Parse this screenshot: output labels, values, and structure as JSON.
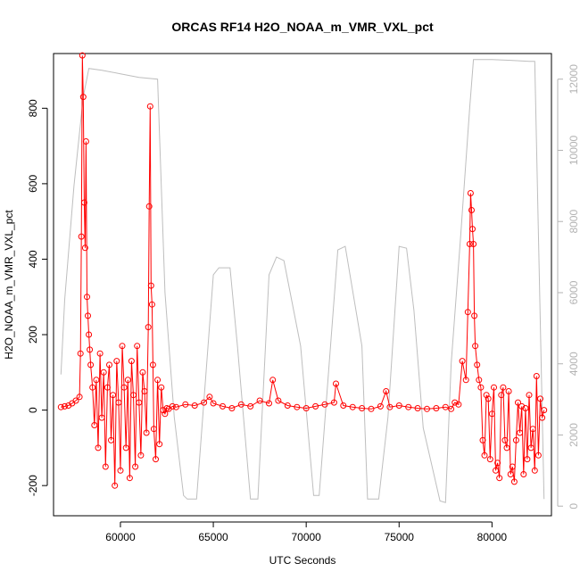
{
  "chart_data": {
    "type": "line",
    "title": "ORCAS RF14 H2O_NOAA_m_VMR_VXL_pct",
    "xlabel": "UTC Seconds",
    "ylabel": "H2O_NOAA_m_VMR_VXL_pct",
    "xlim": [
      56400,
      83200
    ],
    "ylim": [
      -280,
      945
    ],
    "xticks": [
      60000,
      65000,
      70000,
      75000,
      80000
    ],
    "yticks": [
      -200,
      0,
      200,
      400,
      600,
      800
    ],
    "y2lim": [
      -270,
      12720
    ],
    "y2ticks": [
      0,
      2000,
      4000,
      6000,
      8000,
      10000,
      12000
    ],
    "grid": false,
    "colors": {
      "primary": "#ff0000",
      "secondary": "#bebebe"
    },
    "series": [
      {
        "axis": "left",
        "style": "line+circles",
        "color": "#ff0000",
        "x": [
          56800,
          57000,
          57200,
          57400,
          57600,
          57800,
          57850,
          57900,
          57950,
          58000,
          58050,
          58100,
          58150,
          58200,
          58250,
          58300,
          58350,
          58400,
          58500,
          58600,
          58700,
          58800,
          58900,
          59000,
          59100,
          59200,
          59300,
          59400,
          59500,
          59600,
          59700,
          59800,
          59900,
          60000,
          60100,
          60200,
          60300,
          60400,
          60500,
          60600,
          60700,
          60800,
          60900,
          61000,
          61100,
          61200,
          61300,
          61400,
          61500,
          61550,
          61600,
          61650,
          61700,
          61750,
          61800,
          61900,
          62000,
          62100,
          62200,
          62300,
          62400,
          62500,
          62600,
          62800,
          63000,
          63500,
          64000,
          64500,
          64800,
          65000,
          65500,
          66000,
          66500,
          67000,
          67500,
          68000,
          68200,
          68500,
          69000,
          69500,
          70000,
          70500,
          71000,
          71500,
          71600,
          72000,
          72500,
          73000,
          73500,
          74000,
          74300,
          74500,
          75000,
          75500,
          76000,
          76500,
          77000,
          77500,
          77800,
          78000,
          78200,
          78400,
          78600,
          78700,
          78800,
          78850,
          78900,
          78950,
          79000,
          79050,
          79100,
          79200,
          79300,
          79400,
          79500,
          79600,
          79700,
          79800,
          79900,
          80000,
          80100,
          80200,
          80300,
          80400,
          80500,
          80600,
          80700,
          80800,
          80900,
          81000,
          81100,
          81200,
          81300,
          81400,
          81500,
          81600,
          81700,
          81800,
          81900,
          82000,
          82100,
          82200,
          82300,
          82400,
          82500,
          82600,
          82700,
          82800
        ],
        "y": [
          8,
          10,
          12,
          18,
          25,
          35,
          150,
          460,
          940,
          830,
          550,
          430,
          712,
          300,
          250,
          200,
          160,
          120,
          60,
          -40,
          80,
          -100,
          150,
          -20,
          100,
          -150,
          60,
          120,
          -80,
          40,
          -200,
          130,
          20,
          -160,
          170,
          60,
          -100,
          80,
          -180,
          130,
          40,
          -150,
          170,
          20,
          -120,
          100,
          50,
          -60,
          220,
          540,
          805,
          330,
          280,
          120,
          -50,
          -130,
          80,
          -90,
          60,
          0,
          -10,
          5,
          3,
          10,
          8,
          15,
          12,
          20,
          35,
          18,
          10,
          5,
          15,
          10,
          25,
          18,
          80,
          25,
          12,
          8,
          5,
          10,
          15,
          20,
          70,
          12,
          8,
          5,
          3,
          10,
          50,
          8,
          12,
          8,
          5,
          3,
          5,
          8,
          3,
          20,
          15,
          130,
          80,
          260,
          440,
          575,
          530,
          480,
          440,
          250,
          170,
          120,
          80,
          60,
          -80,
          -120,
          40,
          30,
          -130,
          -10,
          60,
          -160,
          -140,
          -180,
          40,
          60,
          -80,
          -100,
          50,
          -170,
          -150,
          -190,
          -80,
          20,
          -60,
          10,
          -170,
          5,
          -130,
          40,
          -100,
          -50,
          -160,
          90,
          -120,
          30,
          -20,
          0
        ]
      },
      {
        "axis": "right",
        "style": "line",
        "color": "#bebebe",
        "x": [
          56800,
          57000,
          57500,
          58000,
          58300,
          59000,
          60000,
          61000,
          62000,
          62400,
          62900,
          63400,
          63600,
          64100,
          65000,
          65300,
          65900,
          66300,
          67000,
          67400,
          68000,
          68400,
          68800,
          69700,
          70400,
          70700,
          71700,
          72100,
          73000,
          73300,
          73900,
          74400,
          75000,
          75400,
          75800,
          76300,
          77200,
          77500,
          77800,
          78300,
          78800,
          79000,
          79200,
          80000,
          81000,
          82000,
          82300,
          82800
        ],
        "y": [
          3700,
          5800,
          9000,
          11500,
          12300,
          12250,
          12150,
          12050,
          12000,
          6000,
          2500,
          300,
          200,
          200,
          6500,
          6700,
          6700,
          4500,
          200,
          200,
          6500,
          7000,
          6900,
          4500,
          300,
          300,
          7200,
          7300,
          4500,
          200,
          200,
          2500,
          7300,
          7250,
          5500,
          2200,
          150,
          100,
          4000,
          7500,
          11200,
          12550,
          12550,
          12550,
          12530,
          12500,
          12500,
          200
        ]
      }
    ]
  }
}
